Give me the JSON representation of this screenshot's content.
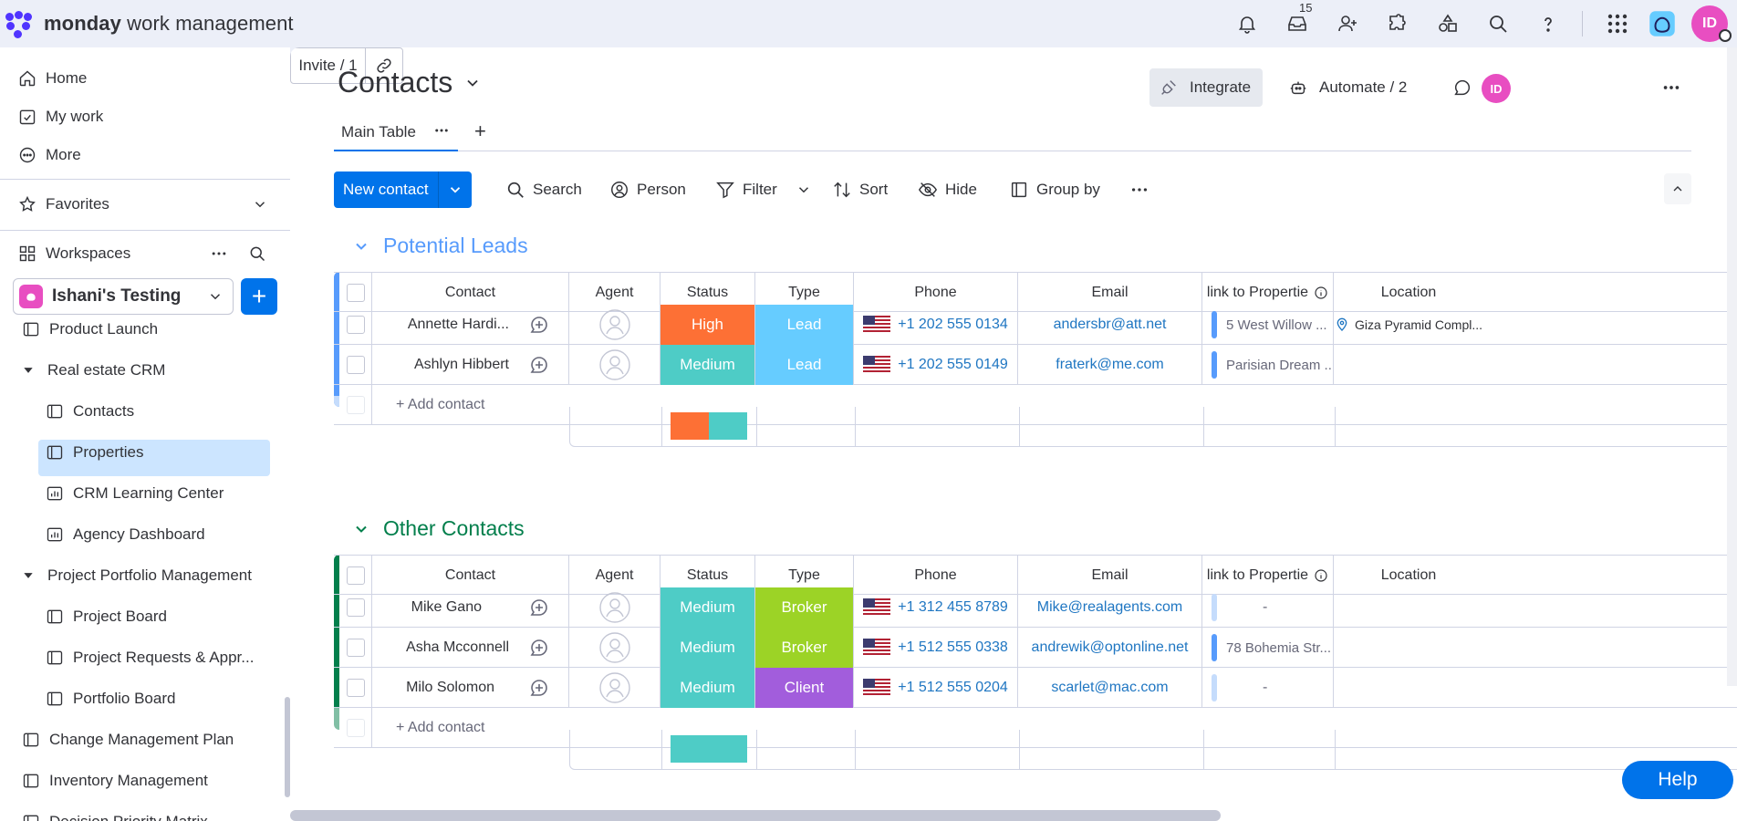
{
  "app": {
    "logo_bold": "monday",
    "logo_rest": " work management",
    "inbox_count": "15",
    "avatar_initials": "ID"
  },
  "sidebar": {
    "home": "Home",
    "my_work": "My work",
    "more": "More",
    "favorites": "Favorites",
    "workspaces": "Workspaces",
    "workspace_name": "Ishani's Testing",
    "items": [
      {
        "label": "Product Launch"
      },
      {
        "label": "Real estate CRM"
      },
      {
        "label": "Contacts"
      },
      {
        "label": "Properties"
      },
      {
        "label": "CRM Learning Center"
      },
      {
        "label": "Agency Dashboard"
      },
      {
        "label": "Project Portfolio Management"
      },
      {
        "label": "Project Board"
      },
      {
        "label": "Project Requests & Appr..."
      },
      {
        "label": "Portfolio Board"
      },
      {
        "label": "Change Management Plan"
      },
      {
        "label": "Inventory Management"
      },
      {
        "label": "Decision Priority Matrix"
      }
    ]
  },
  "board": {
    "title": "Contacts",
    "integrate": "Integrate",
    "automate": "Automate / 2",
    "invite": "Invite / 1",
    "tab_main": "Main Table",
    "toolbar": {
      "new_contact": "New contact",
      "search": "Search",
      "person": "Person",
      "filter": "Filter",
      "sort": "Sort",
      "hide": "Hide",
      "group_by": "Group by"
    },
    "columns": [
      "Contact",
      "Agent",
      "Status",
      "Type",
      "Phone",
      "Email",
      "link to Propertie",
      "Location"
    ],
    "add_contact": "+ Add contact",
    "help": "Help"
  },
  "groups": [
    {
      "name": "Potential Leads",
      "color": "#579bfc",
      "rows": [
        {
          "contact": "Annette Hardi...",
          "status": "High",
          "status_color": "#fd7035",
          "type": "Lead",
          "type_color": "#66ccff",
          "phone": "+1 202 555 0134",
          "email": "andersbr@att.net",
          "property": "5 West Willow ...",
          "location": "Giza Pyramid Compl..."
        },
        {
          "contact": "Ashlyn Hibbert",
          "status": "Medium",
          "status_color": "#4eccc6",
          "type": "Lead",
          "type_color": "#66ccff",
          "phone": "+1 202 555 0149",
          "email": "fraterk@me.com",
          "property": "Parisian Dream ...",
          "location": ""
        }
      ]
    },
    {
      "name": "Other Contacts",
      "color": "#037f4c",
      "rows": [
        {
          "contact": "Mike Gano",
          "status": "Medium",
          "status_color": "#4eccc6",
          "type": "Broker",
          "type_color": "#9cd326",
          "phone": "+1 312 455 8789",
          "email": "Mike@realagents.com",
          "property": "-",
          "location": ""
        },
        {
          "contact": "Asha Mcconnell",
          "status": "Medium",
          "status_color": "#4eccc6",
          "type": "Broker",
          "type_color": "#9cd326",
          "phone": "+1 512 555 0338",
          "email": "andrewik@optonline.net",
          "property": "78 Bohemia Str...",
          "location": ""
        },
        {
          "contact": "Milo Solomon",
          "status": "Medium",
          "status_color": "#4eccc6",
          "type": "Client",
          "type_color": "#a25ddc",
          "phone": "+1 512 555 0204",
          "email": "scarlet@mac.com",
          "property": "-",
          "location": ""
        }
      ]
    }
  ]
}
